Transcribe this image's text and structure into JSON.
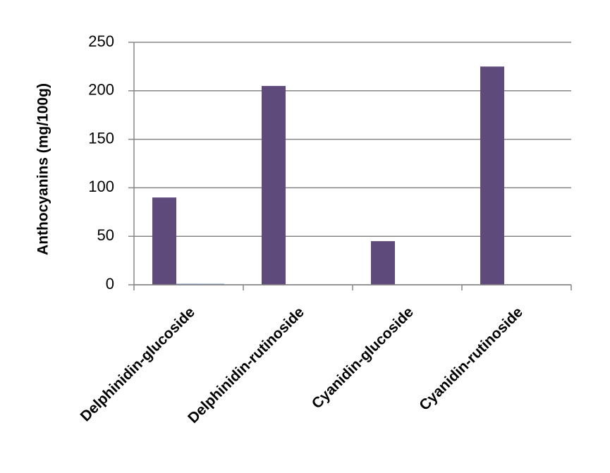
{
  "chart_data": {
    "type": "bar",
    "y_label": "Anthocyanins (mg/100g)",
    "categories": [
      "Delphinidin-glucoside",
      "Delphinidin-rutinoside",
      "Cyanidin-glucoside",
      "Cyanidin-rutinoside"
    ],
    "series": [
      {
        "color": "#5f4b7b",
        "values": [
          90,
          205,
          45,
          225
        ]
      },
      {
        "color": "#4f81bd",
        "values": [
          1,
          null,
          null,
          null
        ]
      },
      {
        "color": "#6a86a8",
        "values": [
          1,
          null,
          null,
          null
        ]
      }
    ],
    "ylim": [
      0,
      250
    ],
    "yticks": [
      0,
      50,
      100,
      150,
      200,
      250
    ],
    "grid": true
  }
}
